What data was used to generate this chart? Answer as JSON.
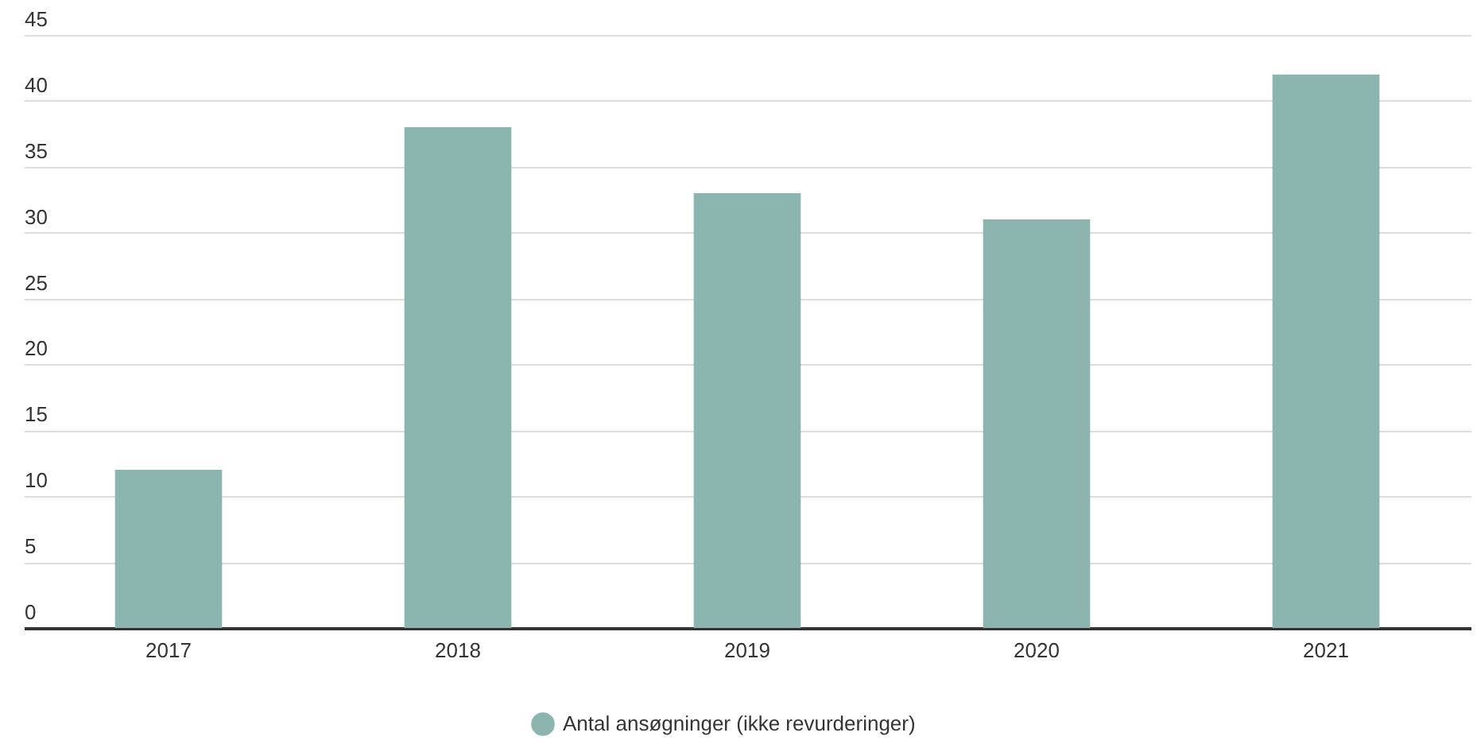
{
  "chart_data": {
    "type": "bar",
    "categories": [
      "2017",
      "2018",
      "2019",
      "2020",
      "2021"
    ],
    "series": [
      {
        "name": "Antal ansøgninger (ikke revurderinger)",
        "color": "#8bb5ae",
        "values": [
          12,
          38,
          33,
          31,
          42
        ]
      }
    ],
    "ylim": [
      0,
      45
    ],
    "yticks": [
      0,
      5,
      10,
      15,
      20,
      25,
      30,
      35,
      40,
      45
    ],
    "grid": "y",
    "legend": "bottom"
  }
}
